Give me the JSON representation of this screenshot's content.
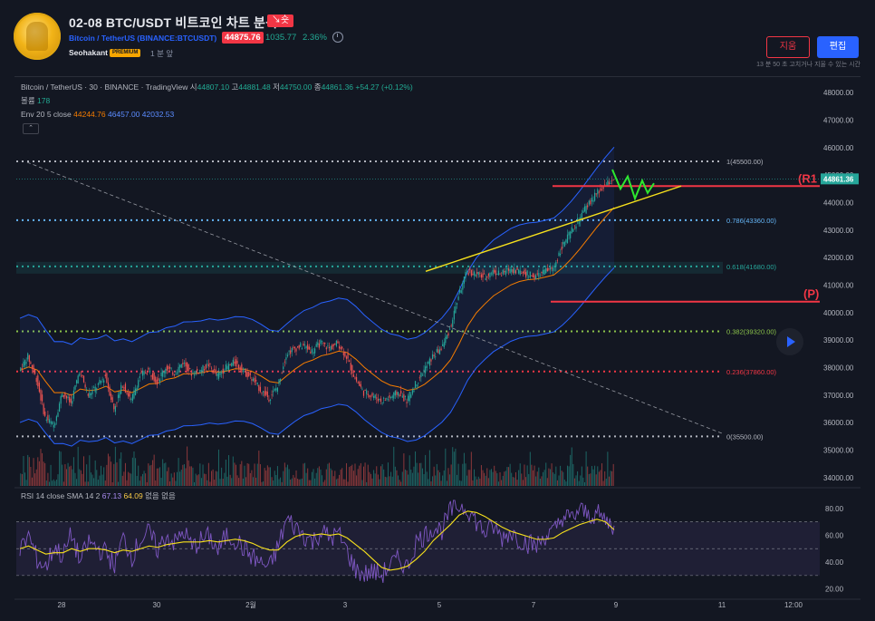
{
  "header": {
    "title": "02-08 BTC/USDT 비트코인 차트 분석",
    "direction_badge": "↘숏",
    "symbol_line": "Bitcoin / TetherUS (BINANCE:BTCUSDT)",
    "price": "44875.76",
    "change": "1035.77",
    "change_pct": "2.36%",
    "author": "Seohakant",
    "premium_label": "PREMIUM",
    "time_ago": "1 분 앞",
    "delete_label": "지움",
    "edit_label": "편집",
    "edit_note": "13 분 50 초 고치거나 지울 수 있는 시간"
  },
  "legend": {
    "main_prefix": "Bitcoin / TetherUS · 30 · BINANCE · TradingView",
    "open_label": "시",
    "open": "44807.10",
    "high_label": "고",
    "high": "44881.48",
    "low_label": "저",
    "low": "44750.00",
    "close_label": "종",
    "close": "44861.36",
    "change": "+54.27 (+0.12%)",
    "volume_label": "볼륨",
    "volume": "178",
    "env_label": "Env 20 5 close",
    "env_mid": "44244.76",
    "env_upper": "46457.00",
    "env_lower": "42032.53",
    "collapse_glyph": "⌃",
    "rsi_label": "RSI 14 close SMA 14 2",
    "rsi_value": "67.13",
    "rsi_sma": "64.09",
    "rsi_na1": "없음",
    "rsi_na2": "없음"
  },
  "chart_data": {
    "type": "candlestick",
    "symbol": "BTCUSDT",
    "interval": "30",
    "exchange": "BINANCE",
    "price_axis": {
      "ticks": [
        "48000.00",
        "47000.00",
        "46000.00",
        "45000.00",
        "44000.00",
        "43000.00",
        "42000.00",
        "41000.00",
        "40000.00",
        "39000.00",
        "38000.00",
        "37000.00",
        "36000.00",
        "35000.00",
        "34000.00"
      ],
      "range": [
        33700,
        48300
      ],
      "current_price_label": "44861.36",
      "current_price": 44861.36
    },
    "time_axis": {
      "ticks": [
        "28",
        "30",
        "2월",
        "3",
        "5",
        "7",
        "9",
        "11",
        "12:00"
      ]
    },
    "fib_levels": [
      {
        "label": "1(45500.00)",
        "ratio": 1,
        "price": 45500,
        "color": "#b2b5be"
      },
      {
        "label": "0.786(43360.00)",
        "ratio": 0.786,
        "price": 43360,
        "color": "#64b5f6"
      },
      {
        "label": "0.618(41680.00)",
        "ratio": 0.618,
        "price": 41680,
        "color": "#26a69a"
      },
      {
        "label": "0.382(39320.00)",
        "ratio": 0.382,
        "price": 39320,
        "color": "#8bc34a"
      },
      {
        "label": "0.236(37860.00)",
        "ratio": 0.236,
        "price": 37860,
        "color": "#f23645"
      },
      {
        "label": "0(35500.00)",
        "ratio": 0,
        "price": 35500,
        "color": "#b2b5be"
      }
    ],
    "annotations": [
      {
        "label": "(R1",
        "price": 44600,
        "color": "#f23645"
      },
      {
        "label": "(P)",
        "price": 40400,
        "color": "#f23645"
      }
    ],
    "close_series": [
      37900,
      38400,
      37600,
      36200,
      35900,
      37100,
      36700,
      37900,
      37000,
      37300,
      37700,
      36500,
      37400,
      36800,
      37700,
      37900,
      37500,
      38000,
      37800,
      38200,
      37800,
      37900,
      38100,
      37700,
      38000,
      38200,
      37900,
      37600,
      37200,
      36900,
      37300,
      38500,
      38700,
      38800,
      38600,
      38900,
      38700,
      38900,
      38400,
      37600,
      37100,
      37000,
      36800,
      36900,
      37100,
      36800,
      37400,
      37900,
      38400,
      38700,
      39400,
      40600,
      41500,
      41400,
      41300,
      41500,
      41400,
      41600,
      41500,
      41400,
      41300,
      41500,
      41600,
      42400,
      42900,
      43400,
      43900,
      44300,
      44600,
      44861.36
    ],
    "rsi": {
      "axis_ticks": [
        "80.00",
        "60.00",
        "40.00",
        "20.00"
      ],
      "range": [
        15,
        88
      ],
      "bands": [
        70,
        50,
        30
      ],
      "values": [
        48,
        60,
        42,
        36,
        52,
        44,
        61,
        40,
        55,
        50,
        47,
        38,
        58,
        44,
        57,
        62,
        49,
        60,
        54,
        63,
        51,
        56,
        59,
        48,
        60,
        57,
        50,
        44,
        39,
        36,
        52,
        72,
        66,
        60,
        55,
        63,
        58,
        61,
        48,
        34,
        31,
        33,
        30,
        38,
        42,
        36,
        55,
        60,
        66,
        64,
        78,
        82,
        80,
        70,
        62,
        66,
        58,
        63,
        57,
        54,
        52,
        60,
        62,
        74,
        72,
        79,
        75,
        76,
        71,
        67.13
      ],
      "sma": [
        50,
        52,
        49,
        46,
        47,
        47,
        50,
        48,
        50,
        50,
        49,
        47,
        49,
        48,
        50,
        52,
        51,
        53,
        54,
        55,
        55,
        55,
        56,
        55,
        56,
        57,
        56,
        54,
        51,
        49,
        49,
        55,
        59,
        61,
        60,
        61,
        60,
        61,
        58,
        53,
        48,
        42,
        36,
        34,
        35,
        37,
        42,
        48,
        56,
        62,
        68,
        75,
        78,
        77,
        74,
        70,
        66,
        63,
        61,
        59,
        57,
        57,
        58,
        62,
        65,
        68,
        70,
        72,
        70,
        64.09
      ]
    }
  }
}
